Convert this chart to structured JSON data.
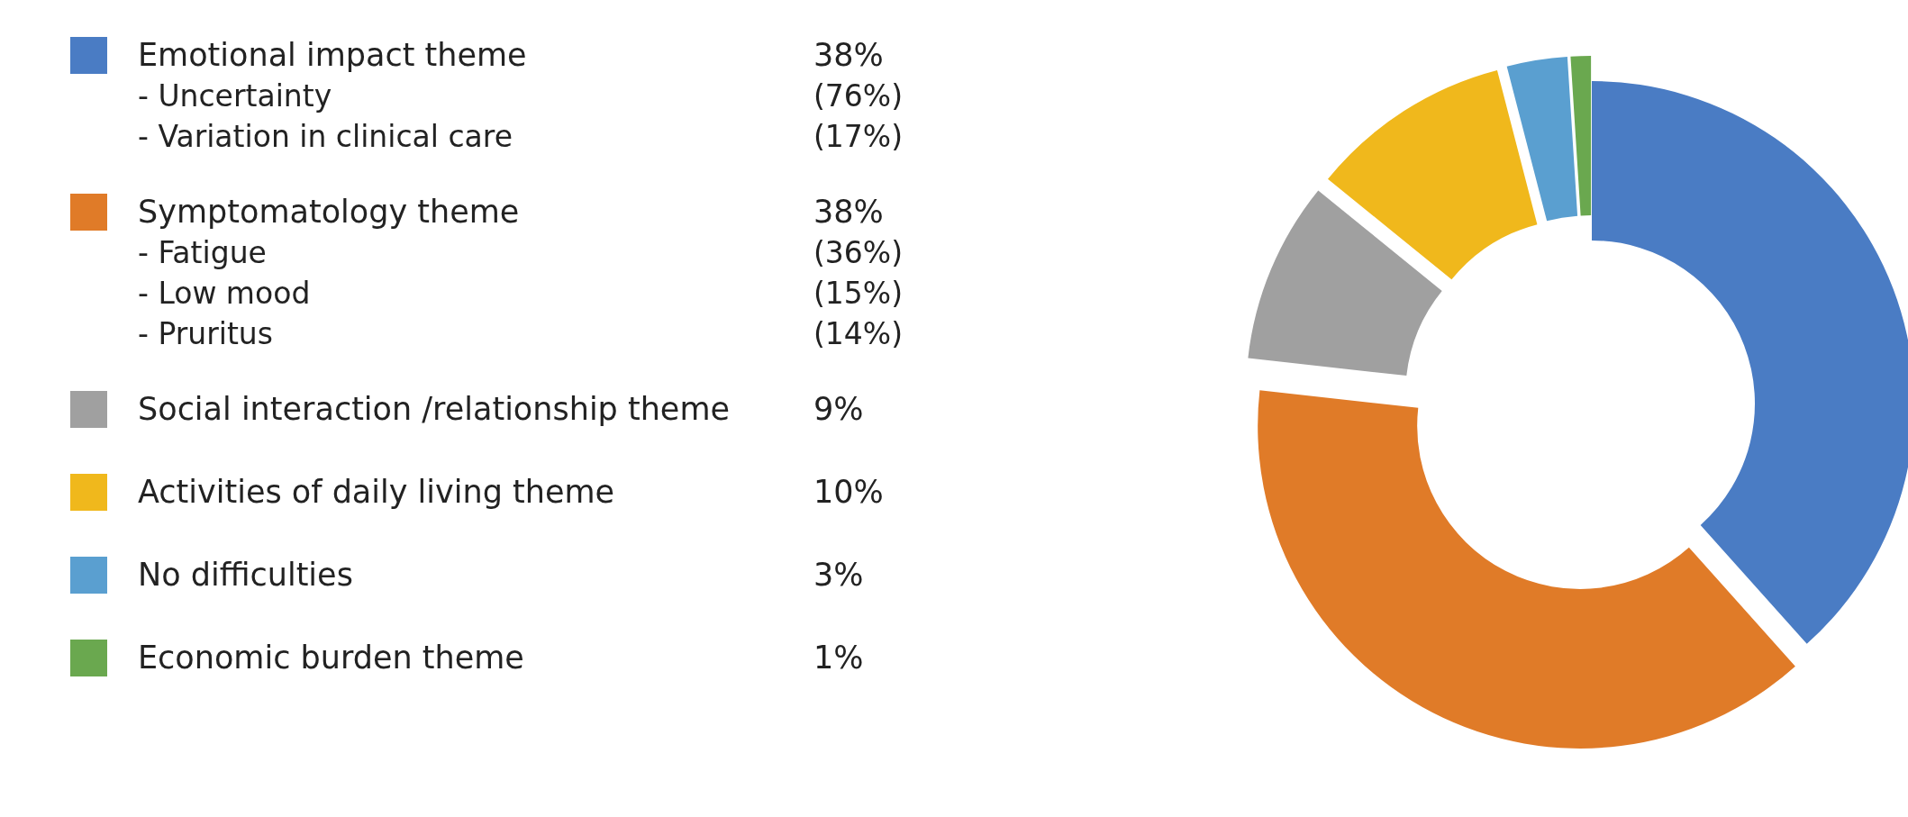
{
  "chart_data": {
    "type": "donut",
    "categories": [
      "Emotional impact theme",
      "Symptomatology theme",
      "Social interaction /relationship theme",
      "Activities of daily living theme",
      "No difficulties",
      "Economic burden theme"
    ],
    "values": [
      38,
      38,
      9,
      10,
      3,
      1
    ],
    "value_labels": [
      "38%",
      "38%",
      "9%",
      "10%",
      "3%",
      "1%"
    ],
    "colors": [
      "#4a7cc4",
      "#e07b28",
      "#a0a0a0",
      "#f0b81c",
      "#5a9fd0",
      "#6aa84f"
    ],
    "legend": "left",
    "annotations": [
      "- Uncertainty (76%)",
      "- Variation in clinical care (17%)",
      "- Fatigue (36%)",
      "- Low mood (15%)",
      "- Pruritus (14%)"
    ]
  }
}
